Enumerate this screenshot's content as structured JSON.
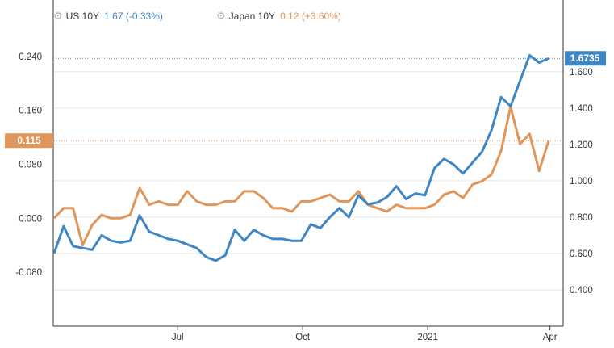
{
  "legend": {
    "us": {
      "name": "US 10Y",
      "value": "1.67",
      "change": "(-0.33%)"
    },
    "japan": {
      "name": "Japan 10Y",
      "value": "0.12",
      "change": "(+3.60%)"
    }
  },
  "icons": {
    "legend_toggle": "gear-icon"
  },
  "colors": {
    "us": "#3f86c4",
    "us_light": "#8fc0e8",
    "japan": "#e0965a",
    "grid": "#e6e6e6",
    "axis": "#333333"
  },
  "badges": {
    "us_last": "1.6735",
    "japan_last": "0.115"
  },
  "chart_data": {
    "type": "line",
    "x": [
      "2020-04-01",
      "2020-04-08",
      "2020-04-15",
      "2020-04-22",
      "2020-04-29",
      "2020-05-06",
      "2020-05-13",
      "2020-05-20",
      "2020-05-27",
      "2020-06-03",
      "2020-06-10",
      "2020-06-17",
      "2020-06-24",
      "2020-07-01",
      "2020-07-08",
      "2020-07-15",
      "2020-07-22",
      "2020-07-29",
      "2020-08-05",
      "2020-08-12",
      "2020-08-19",
      "2020-08-26",
      "2020-09-02",
      "2020-09-09",
      "2020-09-16",
      "2020-09-23",
      "2020-09-30",
      "2020-10-07",
      "2020-10-14",
      "2020-10-21",
      "2020-10-28",
      "2020-11-04",
      "2020-11-11",
      "2020-11-18",
      "2020-11-25",
      "2020-12-02",
      "2020-12-09",
      "2020-12-16",
      "2020-12-23",
      "2020-12-30",
      "2021-01-06",
      "2021-01-13",
      "2021-01-20",
      "2021-01-27",
      "2021-02-03",
      "2021-02-10",
      "2021-02-17",
      "2021-02-24",
      "2021-03-03",
      "2021-03-10",
      "2021-03-17",
      "2021-03-24",
      "2021-03-31"
    ],
    "x_ticks": [
      "Jul",
      "Oct",
      "2021",
      "Apr"
    ],
    "series": [
      {
        "name": "US 10Y",
        "axis": "right",
        "values": [
          0.6,
          0.75,
          0.64,
          0.63,
          0.62,
          0.7,
          0.67,
          0.66,
          0.67,
          0.81,
          0.72,
          0.7,
          0.68,
          0.67,
          0.65,
          0.63,
          0.58,
          0.56,
          0.59,
          0.73,
          0.67,
          0.73,
          0.7,
          0.68,
          0.68,
          0.67,
          0.67,
          0.76,
          0.74,
          0.8,
          0.85,
          0.8,
          0.92,
          0.87,
          0.88,
          0.91,
          0.97,
          0.9,
          0.93,
          0.92,
          1.07,
          1.12,
          1.09,
          1.04,
          1.1,
          1.16,
          1.28,
          1.46,
          1.41,
          1.55,
          1.69,
          1.65,
          1.6735
        ]
      },
      {
        "name": "Japan 10Y",
        "axis": "left",
        "values": [
          0.0,
          0.015,
          0.015,
          -0.04,
          -0.01,
          0.005,
          0.0,
          0.0,
          0.005,
          0.045,
          0.02,
          0.025,
          0.02,
          0.02,
          0.04,
          0.025,
          0.02,
          0.02,
          0.025,
          0.025,
          0.04,
          0.04,
          0.03,
          0.015,
          0.015,
          0.01,
          0.025,
          0.025,
          0.03,
          0.035,
          0.025,
          0.025,
          0.04,
          0.02,
          0.015,
          0.01,
          0.02,
          0.015,
          0.015,
          0.015,
          0.02,
          0.035,
          0.04,
          0.03,
          0.05,
          0.055,
          0.065,
          0.1,
          0.165,
          0.11,
          0.125,
          0.07,
          0.115
        ]
      }
    ],
    "left_axis": {
      "ticks": [
        "0.240",
        "0.160",
        "0.080",
        "0.000",
        "-0.080"
      ],
      "ylim": [
        -0.16,
        0.29
      ]
    },
    "right_axis": {
      "ticks": [
        "1.600",
        "1.400",
        "1.200",
        "1.000",
        "0.800",
        "0.600",
        "0.400"
      ],
      "ylim": [
        0.2,
        1.87
      ]
    },
    "grid": true,
    "legend_position": "top-left"
  }
}
